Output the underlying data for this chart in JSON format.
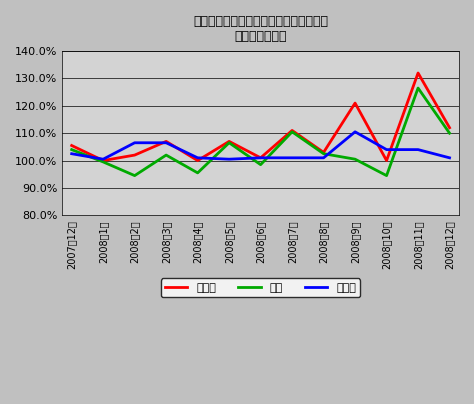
{
  "title_line1": "ユニクロの直近一年間における売上推移",
  "title_line2": "（前年同月比）",
  "x_labels": [
    "2007年12月",
    "2008年1月",
    "2008年2月",
    "2008年3月",
    "2008年4月",
    "2008年5月",
    "2008年6月",
    "2008年7月",
    "2008年8月",
    "2008年9月",
    "2008年10月",
    "2008年11月",
    "2008年12月"
  ],
  "sales": [
    1.055,
    1.0,
    1.02,
    1.07,
    1.0,
    1.07,
    1.01,
    1.11,
    1.03,
    1.21,
    1.0,
    1.32,
    1.12
  ],
  "customers": [
    1.04,
    0.995,
    0.945,
    1.02,
    0.955,
    1.065,
    0.985,
    1.105,
    1.025,
    1.005,
    0.945,
    1.265,
    1.1
  ],
  "unit_price": [
    1.025,
    1.005,
    1.065,
    1.065,
    1.01,
    1.005,
    1.01,
    1.01,
    1.01,
    1.105,
    1.04,
    1.04,
    1.01
  ],
  "sales_color": "#ff0000",
  "customers_color": "#00aa00",
  "unit_price_color": "#0000ff",
  "legend_sales": "売上高",
  "legend_customers": "客数",
  "legend_unit_price": "客単価",
  "ylim_min": 0.8,
  "ylim_max": 1.4,
  "yticks": [
    0.8,
    0.9,
    1.0,
    1.1,
    1.2,
    1.3,
    1.4
  ],
  "bg_color": "#c0c0c0",
  "plot_bg_color": "#d3d3d3",
  "line_width": 2.0
}
